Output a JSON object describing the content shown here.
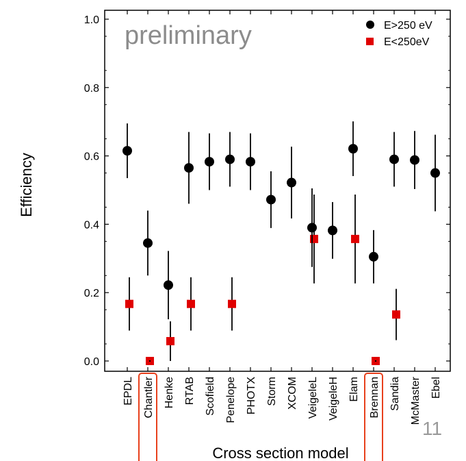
{
  "chart_data": {
    "type": "scatter",
    "xlabel": "Cross section model",
    "ylabel": "Efficiency",
    "ylim": [
      0.0,
      1.0
    ],
    "yticks": [
      "0.0",
      "0.2",
      "0.4",
      "0.6",
      "0.8",
      "1.0"
    ],
    "categories": [
      "EPDL",
      "Chantler",
      "Henke",
      "RTAB",
      "Scofield",
      "Penelope",
      "PHOTX",
      "Storm",
      "XCOM",
      "VeigeleL",
      "VeigeleH",
      "Elam",
      "Brennan",
      "Sandia",
      "McMaster",
      "Ebel"
    ],
    "highlighted_categories": [
      "Chantler",
      "Brennan"
    ],
    "highlight_color": "#e8401c",
    "annotation": "preliminary",
    "legend_position": "top-right",
    "series": [
      {
        "name": "E>250 eV",
        "marker": "circle",
        "color": "#000000",
        "points": [
          {
            "category": "EPDL",
            "y": 0.615,
            "err": 0.08
          },
          {
            "category": "Chantler",
            "y": 0.345,
            "err": 0.095
          },
          {
            "category": "Henke",
            "y": 0.222,
            "err": 0.1
          },
          {
            "category": "RTAB",
            "y": 0.565,
            "err": 0.105
          },
          {
            "category": "Scofield",
            "y": 0.583,
            "err": 0.083
          },
          {
            "category": "Penelope",
            "y": 0.59,
            "err": 0.08
          },
          {
            "category": "PHOTX",
            "y": 0.583,
            "err": 0.083
          },
          {
            "category": "Storm",
            "y": 0.472,
            "err": 0.083
          },
          {
            "category": "XCOM",
            "y": 0.522,
            "err": 0.105
          },
          {
            "category": "VeigeleL",
            "y": 0.39,
            "err": 0.115
          },
          {
            "category": "VeigeleH",
            "y": 0.382,
            "err": 0.083
          },
          {
            "category": "Elam",
            "y": 0.621,
            "err": 0.08
          },
          {
            "category": "Brennan",
            "y": 0.305,
            "err": 0.078
          },
          {
            "category": "Sandia",
            "y": 0.59,
            "err": 0.08
          },
          {
            "category": "McMaster",
            "y": 0.588,
            "err": 0.085
          },
          {
            "category": "Ebel",
            "y": 0.55,
            "err": 0.112
          }
        ]
      },
      {
        "name": "E<250eV",
        "marker": "square",
        "color": "#e00000",
        "points": [
          {
            "category": "EPDL",
            "y": 0.167,
            "err": 0.078
          },
          {
            "category": "Chantler",
            "y": 0.0,
            "err": 0.0
          },
          {
            "category": "Henke",
            "y": 0.058,
            "err": 0.058
          },
          {
            "category": "RTAB",
            "y": 0.167,
            "err": 0.078
          },
          {
            "category": "Penelope",
            "y": 0.167,
            "err": 0.078
          },
          {
            "category": "VeigeleL",
            "y": 0.357,
            "err": 0.13
          },
          {
            "category": "Elam",
            "y": 0.357,
            "err": 0.13
          },
          {
            "category": "Brennan",
            "y": 0.0,
            "err": 0.0
          },
          {
            "category": "Sandia",
            "y": 0.136,
            "err": 0.075
          }
        ]
      }
    ]
  },
  "slide_number": "11"
}
